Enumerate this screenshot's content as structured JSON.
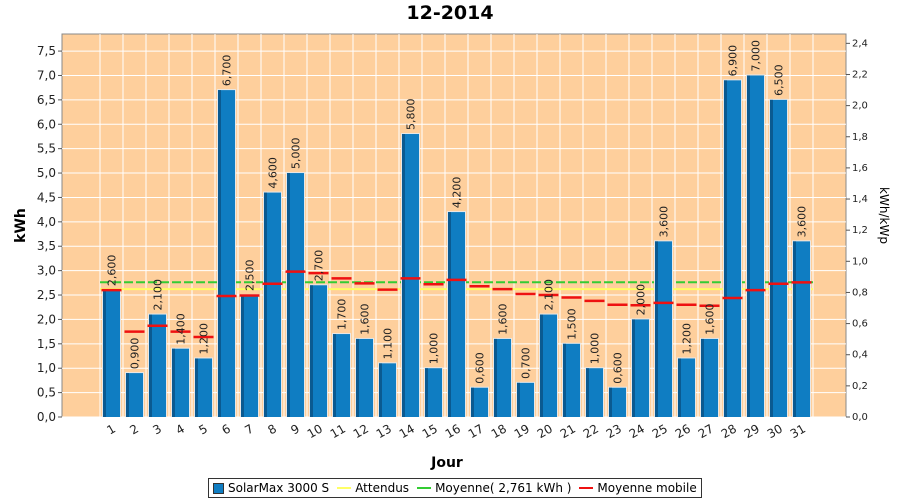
{
  "title": "12-2014",
  "colors": {
    "plot_bg": "#fecf9c",
    "bar": "#0f7dc2",
    "bar_dark": "#0a5a91",
    "expected": "#ffff66",
    "average": "#33cc33",
    "moving_avg": "#ee1111",
    "grid": "#ffffff"
  },
  "legend": {
    "series1": "SolarMax 3000 S",
    "expected": "Attendus",
    "average": "Moyenne( 2,761 kWh )",
    "moving": "Moyenne mobile"
  },
  "chart_data": {
    "type": "bar",
    "title": "12-2014",
    "xlabel": "Jour",
    "ylabel": "kWh",
    "y2label": "kWh/kWp",
    "ylim": [
      0,
      7.85
    ],
    "y2lim": [
      0,
      2.46
    ],
    "yticks": [
      "0,0",
      "0,5",
      "1,0",
      "1,5",
      "2,0",
      "2,5",
      "3,0",
      "3,5",
      "4,0",
      "4,5",
      "5,0",
      "5,5",
      "6,0",
      "6,5",
      "7,0",
      "7,5"
    ],
    "y2ticks": [
      "0,0",
      "0,2",
      "0,4",
      "0,6",
      "0,8",
      "1,0",
      "1,2",
      "1,4",
      "1,6",
      "1,8",
      "2,0",
      "2,2",
      "2,4"
    ],
    "categories": [
      "1",
      "2",
      "3",
      "4",
      "5",
      "6",
      "7",
      "8",
      "9",
      "10",
      "11",
      "12",
      "13",
      "14",
      "15",
      "16",
      "17",
      "18",
      "19",
      "20",
      "21",
      "22",
      "23",
      "24",
      "25",
      "26",
      "27",
      "28",
      "29",
      "30",
      "31"
    ],
    "series": [
      {
        "name": "SolarMax 3000 S",
        "values": [
          2.6,
          0.9,
          2.1,
          1.4,
          1.2,
          6.7,
          2.5,
          4.6,
          5.0,
          2.7,
          1.7,
          1.6,
          1.1,
          5.8,
          1.0,
          4.2,
          0.6,
          1.6,
          0.7,
          2.1,
          1.5,
          1.0,
          0.6,
          2.0,
          3.6,
          1.2,
          1.6,
          6.9,
          7.0,
          6.5,
          3.6
        ],
        "labels": [
          "2,600",
          "0,900",
          "2,100",
          "1,400",
          "1,200",
          "6,700",
          "2,500",
          "4,600",
          "5,000",
          "2,700",
          "1,700",
          "1,600",
          "1,100",
          "5,800",
          "1,000",
          "4,200",
          "0,600",
          "1,600",
          "0,700",
          "2,100",
          "1,500",
          "1,000",
          "0,600",
          "2,000",
          "3,600",
          "1,200",
          "1,600",
          "6,900",
          "7,000",
          "6,500",
          "3,600"
        ]
      },
      {
        "name": "Attendus",
        "values": [
          2.62,
          2.62,
          2.62,
          2.62,
          2.62,
          2.62,
          2.62,
          2.62,
          2.62,
          2.62,
          2.62,
          2.62,
          2.62,
          2.62,
          2.62,
          2.62,
          2.62,
          2.62,
          2.62,
          2.62,
          2.62,
          2.62,
          2.62,
          2.62,
          2.62,
          2.62,
          2.62,
          2.62,
          2.62,
          2.62,
          2.62
        ]
      },
      {
        "name": "Moyenne( 2,761 kWh )",
        "values": [
          2.761,
          2.761,
          2.761,
          2.761,
          2.761,
          2.761,
          2.761,
          2.761,
          2.761,
          2.761,
          2.761,
          2.761,
          2.761,
          2.761,
          2.761,
          2.761,
          2.761,
          2.761,
          2.761,
          2.761,
          2.761,
          2.761,
          2.761,
          2.761,
          2.761,
          2.761,
          2.761,
          2.761,
          2.761,
          2.761,
          2.761
        ]
      },
      {
        "name": "Moyenne mobile",
        "values": [
          2.6,
          1.75,
          1.87,
          1.75,
          1.64,
          2.48,
          2.49,
          2.73,
          2.98,
          2.95,
          2.84,
          2.74,
          2.61,
          2.84,
          2.72,
          2.81,
          2.68,
          2.62,
          2.52,
          2.5,
          2.45,
          2.38,
          2.3,
          2.29,
          2.34,
          2.3,
          2.28,
          2.44,
          2.6,
          2.73,
          2.76
        ]
      }
    ],
    "legend_position": "bottom",
    "grid": true
  }
}
